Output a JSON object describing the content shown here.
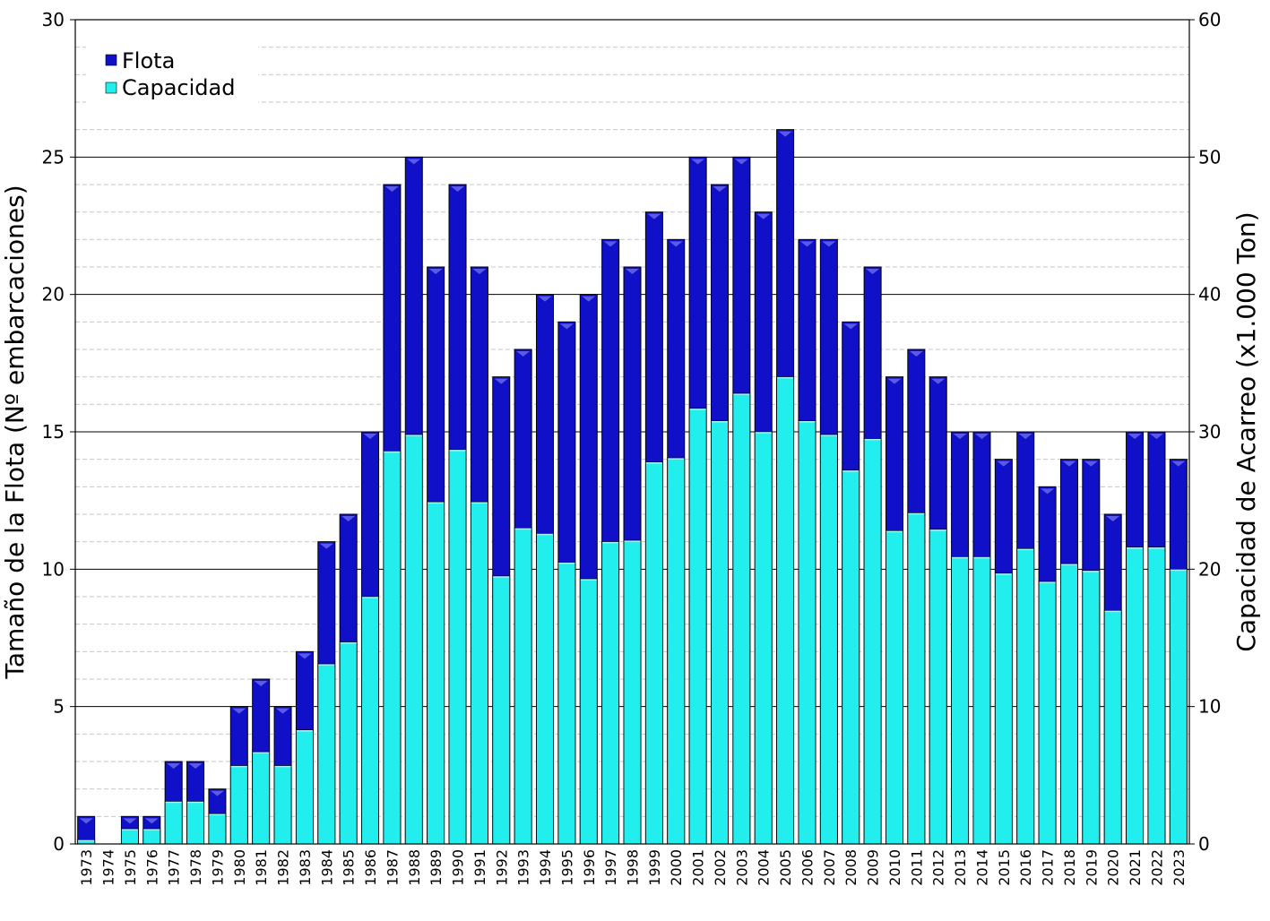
{
  "chart_data": {
    "type": "bar",
    "title": "",
    "ylabel": "Tamaño de la Flota (Nº embarcaciones)",
    "y2label": "Capacidad de Acarreo (x1.000 Ton)",
    "ylim": [
      0,
      30
    ],
    "y2lim": [
      0,
      60
    ],
    "yticks": [
      0,
      5,
      10,
      15,
      20,
      25,
      30
    ],
    "y2ticks": [
      0,
      10,
      20,
      30,
      40,
      50,
      60
    ],
    "grid": true,
    "legend_position": "top-left",
    "categories": [
      "1973",
      "1974",
      "1975",
      "1976",
      "1977",
      "1978",
      "1979",
      "1980",
      "1981",
      "1982",
      "1983",
      "1984",
      "1985",
      "1986",
      "1987",
      "1988",
      "1989",
      "1990",
      "1991",
      "1992",
      "1993",
      "1994",
      "1995",
      "1996",
      "1997",
      "1998",
      "1999",
      "2000",
      "2001",
      "2002",
      "2003",
      "2004",
      "2005",
      "2006",
      "2007",
      "2008",
      "2009",
      "2010",
      "2011",
      "2012",
      "2013",
      "2014",
      "2015",
      "2016",
      "2017",
      "2018",
      "2019",
      "2020",
      "2021",
      "2022",
      "2023"
    ],
    "series": [
      {
        "name": "Flota",
        "axis": "left",
        "color": "#1010c8",
        "values": [
          1,
          0,
          1,
          1,
          3,
          3,
          2,
          5,
          6,
          5,
          7,
          11,
          12,
          15,
          24,
          25,
          21,
          24,
          21,
          17,
          18,
          20,
          19,
          20,
          22,
          21,
          23,
          22,
          25,
          24,
          25,
          23,
          26,
          22,
          22,
          19,
          21,
          17,
          18,
          17,
          15,
          15,
          14,
          15,
          13,
          14,
          14,
          12,
          15,
          15,
          14
        ]
      },
      {
        "name": "Capacidad",
        "axis": "right",
        "color": "#22eeee",
        "values": [
          0.3,
          0,
          1.1,
          1.1,
          3.1,
          3.1,
          2.2,
          5.7,
          6.7,
          5.7,
          8.3,
          13.1,
          14.7,
          18,
          28.6,
          29.8,
          24.9,
          28.7,
          24.9,
          19.5,
          23,
          22.6,
          20.5,
          19.3,
          22,
          22.1,
          27.8,
          28.1,
          31.7,
          30.8,
          32.8,
          30,
          34,
          30.8,
          29.8,
          27.2,
          29.5,
          22.8,
          24.1,
          22.9,
          20.9,
          20.9,
          19.7,
          21.5,
          19.1,
          20.4,
          19.9,
          17,
          21.6,
          21.6,
          20
        ]
      }
    ]
  }
}
